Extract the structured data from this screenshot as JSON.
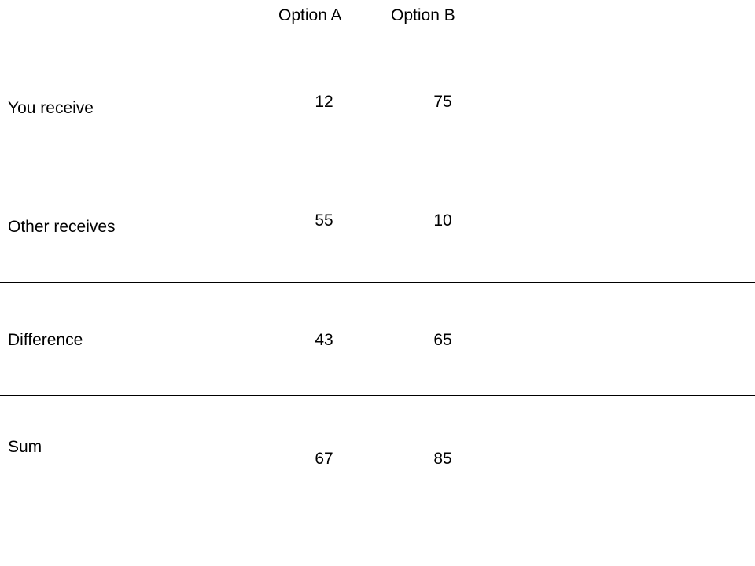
{
  "table": {
    "columns": [
      "Option A",
      "Option B"
    ],
    "rows": [
      {
        "label": "You receive",
        "option_a": "12",
        "option_b": "75"
      },
      {
        "label": "Other receives",
        "option_a": "55",
        "option_b": "10"
      },
      {
        "label": "Difference",
        "option_a": "43",
        "option_b": "65"
      },
      {
        "label": "Sum",
        "option_a": "67",
        "option_b": "85"
      }
    ]
  }
}
